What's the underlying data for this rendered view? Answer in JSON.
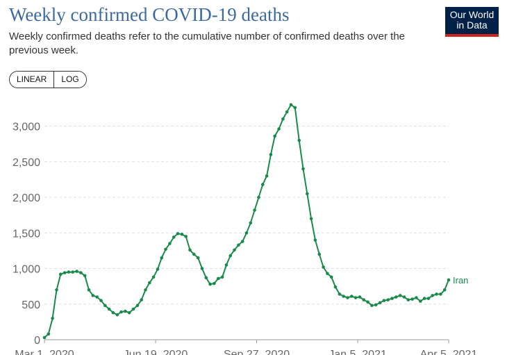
{
  "header": {
    "title": "Weekly confirmed COVID-19 deaths",
    "subtitle": "Weekly confirmed deaths refer to the cumulative number of confirmed deaths over the previous week."
  },
  "logo": {
    "line1": "Our World",
    "line2": "in Data"
  },
  "controls": {
    "scale_options": [
      "LINEAR",
      "LOG"
    ]
  },
  "colors": {
    "series": "#1a8a4a",
    "title": "#3c6a9f",
    "grid": "#dddddd"
  },
  "chart_data": {
    "type": "line",
    "title": "Weekly confirmed COVID-19 deaths",
    "xlabel": "",
    "ylabel": "",
    "ylim": [
      0,
      3300
    ],
    "y_ticks": [
      {
        "value": 0,
        "label": "0"
      },
      {
        "value": 500,
        "label": "500"
      },
      {
        "value": 1000,
        "label": "1,000"
      },
      {
        "value": 1500,
        "label": "1,500"
      },
      {
        "value": 2000,
        "label": "2,000"
      },
      {
        "value": 2500,
        "label": "2,500"
      },
      {
        "value": 3000,
        "label": "3,000"
      }
    ],
    "x_domain_days": [
      0,
      400
    ],
    "x_ticks": [
      {
        "day": 0,
        "label": "Mar 1, 2020"
      },
      {
        "day": 110,
        "label": "Jun 19, 2020"
      },
      {
        "day": 210,
        "label": "Sep 27, 2020"
      },
      {
        "day": 310,
        "label": "Jan 5, 2021"
      },
      {
        "day": 400,
        "label": "Apr 5, 2021"
      }
    ],
    "grid": true,
    "series": [
      {
        "name": "Iran",
        "x_days": [
          0,
          4,
          8,
          12,
          16,
          20,
          24,
          28,
          32,
          36,
          40,
          44,
          48,
          52,
          56,
          60,
          64,
          68,
          72,
          76,
          80,
          84,
          88,
          92,
          96,
          100,
          104,
          108,
          112,
          116,
          120,
          124,
          128,
          132,
          136,
          140,
          144,
          148,
          152,
          156,
          160,
          164,
          168,
          172,
          176,
          180,
          184,
          188,
          192,
          196,
          200,
          204,
          208,
          212,
          216,
          220,
          224,
          228,
          232,
          236,
          240,
          244,
          248,
          252,
          256,
          260,
          264,
          268,
          272,
          276,
          280,
          284,
          288,
          292,
          296,
          300,
          304,
          308,
          312,
          316,
          320,
          324,
          328,
          332,
          336,
          340,
          344,
          348,
          352,
          356,
          360,
          364,
          368,
          372,
          376,
          380,
          384,
          388,
          392,
          396,
          400
        ],
        "values": [
          30,
          80,
          300,
          700,
          920,
          940,
          950,
          950,
          960,
          940,
          900,
          700,
          620,
          600,
          550,
          480,
          430,
          380,
          350,
          390,
          400,
          380,
          430,
          480,
          560,
          700,
          800,
          880,
          990,
          1150,
          1270,
          1350,
          1440,
          1490,
          1480,
          1450,
          1260,
          1200,
          1150,
          1000,
          870,
          780,
          790,
          860,
          880,
          1050,
          1180,
          1260,
          1330,
          1380,
          1500,
          1640,
          1820,
          2000,
          2180,
          2300,
          2600,
          2860,
          2960,
          3100,
          3200,
          3300,
          3260,
          2800,
          2400,
          2050,
          1700,
          1400,
          1200,
          1020,
          930,
          880,
          740,
          640,
          610,
          590,
          610,
          590,
          600,
          560,
          530,
          480,
          490,
          520,
          550,
          560,
          580,
          600,
          620,
          600,
          560,
          570,
          590,
          540,
          580,
          580,
          620,
          640,
          640,
          700,
          840
        ]
      }
    ]
  }
}
